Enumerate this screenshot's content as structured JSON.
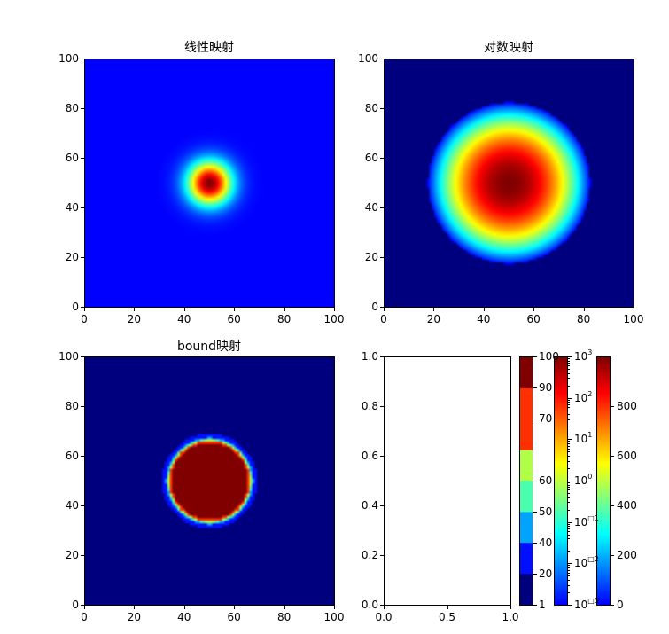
{
  "chart_data": [
    {
      "type": "heatmap",
      "title": "线性映射",
      "description": "2D Gaussian blob centered at (50,50), jet colormap, linear normalization (narrow spread)",
      "xlim": [
        0,
        100
      ],
      "ylim": [
        0,
        100
      ],
      "xticks": [
        "0",
        "20",
        "40",
        "60",
        "80",
        "100"
      ],
      "yticks": [
        "0",
        "20",
        "40",
        "60",
        "80",
        "100"
      ],
      "colormap": "jet",
      "norm": "linear",
      "center": [
        50,
        50
      ],
      "sigma": 5
    },
    {
      "type": "heatmap",
      "title": "对数映射",
      "description": "Same Gaussian blob, jet colormap, logarithmic normalization (wider visible spread)",
      "xlim": [
        0,
        100
      ],
      "ylim": [
        0,
        100
      ],
      "xticks": [
        "0",
        "20",
        "40",
        "60",
        "80",
        "100"
      ],
      "yticks": [
        "0",
        "20",
        "40",
        "60",
        "80",
        "100"
      ],
      "colormap": "jet",
      "norm": "log",
      "center": [
        50,
        50
      ],
      "sigma": 5
    },
    {
      "type": "heatmap",
      "title": "bound映射",
      "description": "Same blob with discrete boundary normalization; saturated dark red disk radius ~16 with thin colored rim",
      "xlim": [
        0,
        100
      ],
      "ylim": [
        0,
        100
      ],
      "xticks": [
        "0",
        "20",
        "40",
        "60",
        "80",
        "100"
      ],
      "yticks": [
        "0",
        "20",
        "40",
        "60",
        "80",
        "100"
      ],
      "colormap": "jet",
      "norm": "boundary",
      "center": [
        50,
        50
      ]
    },
    {
      "type": "scatter",
      "title": "",
      "description": "Empty axes",
      "xlim": [
        0,
        1
      ],
      "ylim": [
        0,
        1
      ],
      "xticks": [
        "0.0",
        "0.5",
        "1.0"
      ],
      "yticks": [
        "0.0",
        "0.2",
        "0.4",
        "0.6",
        "0.8",
        "1.0"
      ]
    }
  ],
  "plots": {
    "linear": {
      "title": "线性映射"
    },
    "log": {
      "title": "对数映射"
    },
    "bound": {
      "title": "bound映射"
    },
    "empty": {
      "title": ""
    }
  },
  "ticks_0_100": [
    "0",
    "20",
    "40",
    "60",
    "80",
    "100"
  ],
  "ticks_empty_y": [
    "0.0",
    "0.2",
    "0.4",
    "0.6",
    "0.8",
    "1.0"
  ],
  "ticks_empty_x": [
    "0.0",
    "0.5",
    "1.0"
  ],
  "colorbars": {
    "bound": {
      "boundaries_labels": [
        "100",
        "90",
        "70",
        "60",
        "50",
        "40",
        "20",
        "1"
      ],
      "bands_top_to_bottom": [
        "#800000",
        "#ff3000",
        "#ff3000",
        "#b0ff46",
        "#49ffad",
        "#00a4ff",
        "#0010ff",
        "#00007f"
      ]
    },
    "log": {
      "labels_top_to_bottom": [
        {
          "base": "10",
          "exp": "3"
        },
        {
          "base": "10",
          "exp": "2"
        },
        {
          "base": "10",
          "exp": "1"
        },
        {
          "base": "10",
          "exp": "0"
        },
        {
          "base": "10",
          "exp": "□1"
        },
        {
          "base": "10",
          "exp": "□2"
        },
        {
          "base": "10",
          "exp": "□3"
        }
      ]
    },
    "linear": {
      "labels_top_to_bottom": [
        "800",
        "600",
        "400",
        "200",
        "0"
      ]
    }
  }
}
